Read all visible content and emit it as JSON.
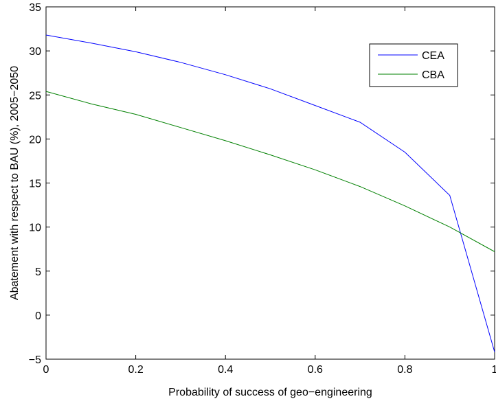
{
  "chart_data": {
    "type": "line",
    "title": "",
    "xlabel": "Probability of success of geo−engineering",
    "ylabel": "Abatement with respect to BAU (%), 2005−2050",
    "xlim": [
      0,
      1
    ],
    "ylim": [
      -5,
      35
    ],
    "xticks": [
      0,
      0.2,
      0.4,
      0.6,
      0.8,
      1
    ],
    "xtick_labels": [
      "0",
      "0.2",
      "0.4",
      "0.6",
      "0.8",
      "1"
    ],
    "yticks": [
      -5,
      0,
      5,
      10,
      15,
      20,
      25,
      30,
      35
    ],
    "ytick_labels": [
      "−5",
      "0",
      "5",
      "10",
      "15",
      "20",
      "25",
      "30",
      "35"
    ],
    "grid": false,
    "legend_position": "top-right",
    "series": [
      {
        "name": "CEA",
        "color": "#0000ff",
        "x": [
          0,
          0.1,
          0.2,
          0.3,
          0.4,
          0.5,
          0.6,
          0.7,
          0.8,
          0.9,
          1.0
        ],
        "y": [
          31.8,
          30.9,
          29.9,
          28.7,
          27.3,
          25.7,
          23.8,
          21.9,
          18.5,
          13.6,
          -4.2
        ]
      },
      {
        "name": "CBA",
        "color": "#008000",
        "x": [
          0,
          0.1,
          0.2,
          0.3,
          0.4,
          0.5,
          0.6,
          0.7,
          0.8,
          0.9,
          1.0
        ],
        "y": [
          25.4,
          24.0,
          22.8,
          21.3,
          19.8,
          18.2,
          16.5,
          14.6,
          12.4,
          10.0,
          7.2
        ]
      }
    ]
  }
}
